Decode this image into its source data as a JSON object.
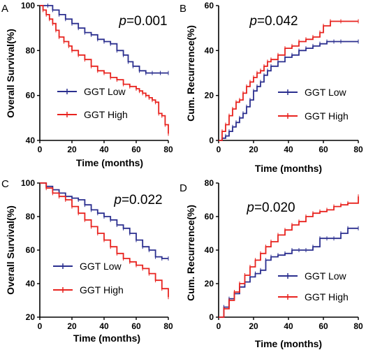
{
  "chart_data": [
    {
      "panel_label": "A",
      "type": "line",
      "p_prefix": "p",
      "p_value": "=0.001",
      "xlabel": "Time (months)",
      "ylabel": "Overall Survival(%)",
      "xlim": [
        0,
        80
      ],
      "ylim": [
        40,
        100
      ],
      "xticks": [
        "0",
        "20",
        "40",
        "60",
        "80"
      ],
      "yticks": [
        "40",
        "60",
        "80",
        "100"
      ],
      "legend_position": "lower-left",
      "series": [
        {
          "name": "GGT Low",
          "color": "#2b2f8f",
          "x": [
            0,
            5,
            8,
            12,
            16,
            20,
            24,
            28,
            32,
            36,
            40,
            44,
            48,
            52,
            55,
            58,
            62,
            66,
            70,
            75,
            80
          ],
          "y": [
            100,
            100,
            98,
            96,
            94,
            92,
            90,
            88,
            87,
            85,
            84,
            83,
            80,
            78,
            75,
            73,
            71,
            70,
            70,
            70,
            70
          ]
        },
        {
          "name": "GGT High",
          "color": "#e8231f",
          "x": [
            0,
            2,
            4,
            6,
            8,
            10,
            12,
            15,
            18,
            20,
            24,
            28,
            32,
            36,
            40,
            44,
            48,
            52,
            56,
            60,
            62,
            64,
            66,
            68,
            70,
            72,
            74,
            76,
            78,
            80
          ],
          "y": [
            100,
            98,
            96,
            94,
            92,
            89,
            86,
            84,
            82,
            80,
            78,
            76,
            73,
            71,
            70,
            68,
            67,
            65,
            64,
            63,
            62,
            61,
            60,
            59,
            58,
            57,
            52,
            51,
            47,
            43
          ]
        }
      ]
    },
    {
      "panel_label": "B",
      "type": "line",
      "p_prefix": "p",
      "p_value": "=0.042",
      "xlabel": "Time (months)",
      "ylabel": "Cum. Recurrence(%)",
      "xlim": [
        0,
        80
      ],
      "ylim": [
        0,
        60
      ],
      "xticks": [
        "0",
        "20",
        "40",
        "60",
        "80"
      ],
      "yticks": [
        "0",
        "20",
        "40",
        "60"
      ],
      "legend_position": "lower-right",
      "series": [
        {
          "name": "GGT Low",
          "color": "#2b2f8f",
          "x": [
            0,
            2,
            4,
            6,
            8,
            10,
            12,
            14,
            16,
            18,
            20,
            22,
            24,
            26,
            28,
            30,
            34,
            38,
            42,
            46,
            50,
            54,
            58,
            62,
            66,
            70,
            80
          ],
          "y": [
            0,
            1,
            2,
            4,
            6,
            8,
            10,
            12,
            15,
            18,
            22,
            24,
            26,
            29,
            31,
            33,
            35,
            37,
            38,
            40,
            41,
            42,
            43,
            44,
            44,
            44,
            44
          ]
        },
        {
          "name": "GGT High",
          "color": "#e8231f",
          "x": [
            0,
            2,
            4,
            6,
            8,
            10,
            12,
            14,
            16,
            18,
            20,
            22,
            24,
            26,
            28,
            30,
            34,
            38,
            42,
            46,
            50,
            54,
            58,
            60,
            64,
            70,
            80
          ],
          "y": [
            0,
            4,
            7,
            11,
            14,
            17,
            18,
            21,
            24,
            26,
            28,
            30,
            31,
            33,
            35,
            36,
            38,
            41,
            42,
            44,
            45,
            46,
            48,
            51,
            53,
            53,
            53
          ]
        }
      ]
    },
    {
      "panel_label": "C",
      "type": "line",
      "p_prefix": "p",
      "p_value": "=0.022",
      "xlabel": "Time (months)",
      "ylabel": "Overall Survival(%)",
      "xlim": [
        0,
        80
      ],
      "ylim": [
        20,
        100
      ],
      "xticks": [
        "0",
        "20",
        "40",
        "60",
        "80"
      ],
      "yticks": [
        "20",
        "40",
        "60",
        "80",
        "100"
      ],
      "legend_position": "lower-left",
      "series": [
        {
          "name": "GGT Low",
          "color": "#2b2f8f",
          "x": [
            0,
            4,
            8,
            12,
            16,
            20,
            24,
            28,
            32,
            36,
            40,
            44,
            48,
            52,
            56,
            60,
            64,
            68,
            72,
            76,
            80
          ],
          "y": [
            100,
            98,
            96,
            94,
            92,
            91,
            90,
            87,
            84,
            82,
            80,
            78,
            75,
            73,
            70,
            66,
            62,
            60,
            56,
            55,
            55
          ]
        },
        {
          "name": "GGT High",
          "color": "#e8231f",
          "x": [
            0,
            4,
            8,
            12,
            16,
            20,
            24,
            28,
            32,
            36,
            40,
            44,
            48,
            52,
            56,
            60,
            64,
            68,
            72,
            76,
            80
          ],
          "y": [
            100,
            97,
            94,
            92,
            90,
            86,
            82,
            78,
            74,
            70,
            66,
            62,
            58,
            55,
            53,
            51,
            49,
            46,
            42,
            37,
            32
          ]
        }
      ]
    },
    {
      "panel_label": "D",
      "type": "line",
      "p_prefix": "p",
      "p_value": "=0.020",
      "xlabel": "Time (months)",
      "ylabel": "Cum. Recurrence(%)",
      "xlim": [
        0,
        80
      ],
      "ylim": [
        0,
        80
      ],
      "xticks": [
        "0",
        "20",
        "40",
        "60",
        "80"
      ],
      "yticks": [
        "0",
        "20",
        "40",
        "60",
        "80"
      ],
      "legend_position": "lower-right",
      "series": [
        {
          "name": "GGT Low",
          "color": "#2b2f8f",
          "x": [
            0,
            3,
            6,
            9,
            12,
            15,
            18,
            21,
            24,
            27,
            30,
            34,
            38,
            42,
            46,
            50,
            54,
            58,
            62,
            66,
            70,
            74,
            80
          ],
          "y": [
            0,
            6,
            11,
            14,
            18,
            21,
            24,
            26,
            28,
            34,
            36,
            37,
            38,
            40,
            40,
            40,
            42,
            47,
            47,
            47,
            50,
            53,
            53
          ]
        },
        {
          "name": "GGT High",
          "color": "#e8231f",
          "x": [
            0,
            3,
            6,
            9,
            12,
            15,
            18,
            21,
            24,
            27,
            30,
            34,
            38,
            42,
            46,
            50,
            54,
            58,
            62,
            66,
            70,
            74,
            80
          ],
          "y": [
            0,
            5,
            10,
            15,
            20,
            25,
            30,
            34,
            38,
            42,
            45,
            49,
            52,
            55,
            57,
            60,
            62,
            63,
            64,
            66,
            67,
            68,
            72
          ]
        }
      ]
    }
  ]
}
